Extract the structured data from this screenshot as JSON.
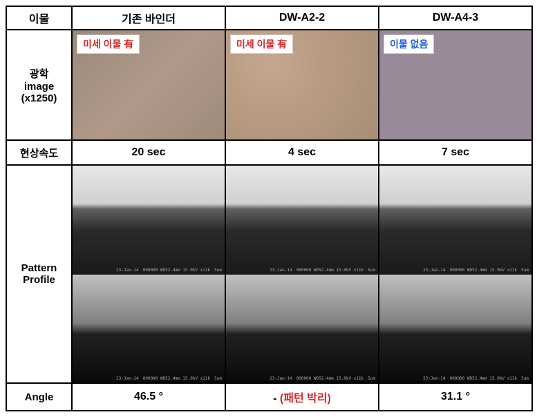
{
  "headers": {
    "rowLabel1": "이물",
    "col1": "기존 바인더",
    "col2": "DW-A2-2",
    "col3": "DW-A4-3",
    "opticalLabel": "광학\nimage\n(x1250)",
    "devSpeedLabel": "현상속도",
    "patternLabel": "Pattern\nProfile",
    "angleLabel": "Angle"
  },
  "optical": {
    "badge1": "미세 이물 有",
    "badge2": "미세 이물 有",
    "badge3": "이물 없음",
    "badgeColors": {
      "badge1": "#d62728",
      "badge2": "#d62728",
      "badge3": "#1f5bd6"
    },
    "sampleBg": {
      "s1": "linear-gradient(135deg,#9a8a7a,#b0998a,#9e8b7c)",
      "s2": "radial-gradient(circle,#c4a890,#b89b82,#a88e78)",
      "s3": "#998a99"
    }
  },
  "devSpeed": {
    "s1": "20 sec",
    "s2": "4 sec",
    "s3": "7 sec"
  },
  "semMeta": {
    "date": "23-Jan-14",
    "info": "000000 WD52.4mm 15.0kV x11k",
    "scale": "5um"
  },
  "angle": {
    "s1": "46.5 °",
    "s2prefix": "- ",
    "s2note": "(패턴 박리)",
    "s3": "31.1 °",
    "noteColor": "#d62728",
    "s3Color": "#1f5bd6"
  }
}
